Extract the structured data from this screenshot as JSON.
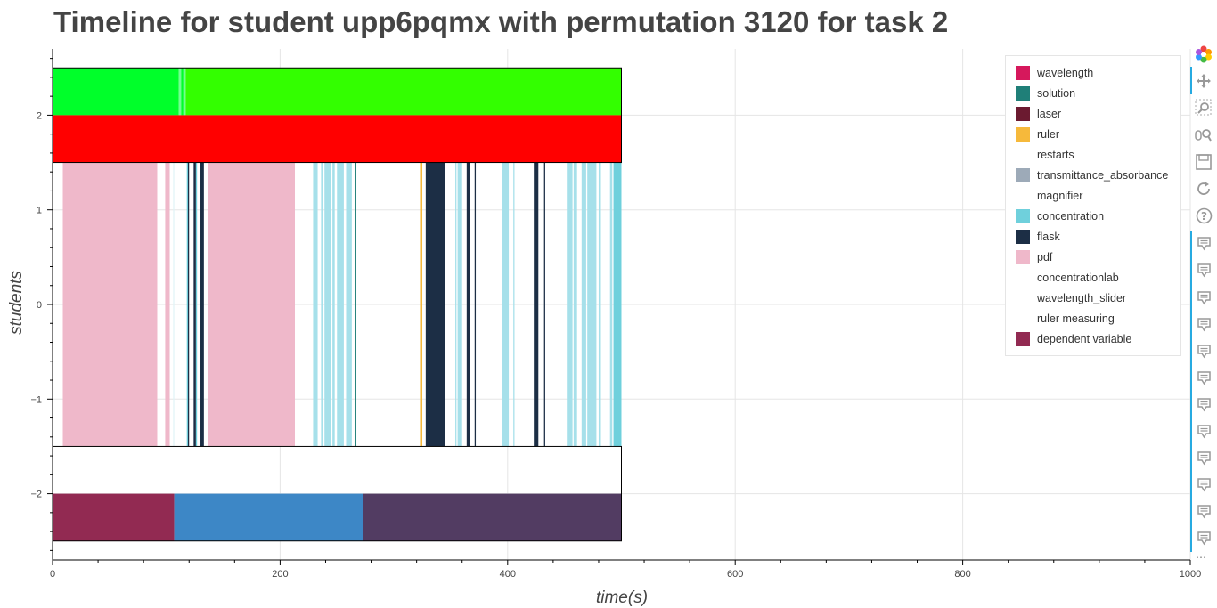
{
  "chart_data": {
    "type": "timeline",
    "title": "Timeline for student upp6pqmx with permutation 3120 for task 2",
    "xlabel": "time(s)",
    "ylabel": "students",
    "xlim": [
      0,
      1000
    ],
    "ylim": [
      -2.7,
      2.7
    ],
    "xticks": [
      0,
      200,
      400,
      600,
      800,
      1000
    ],
    "yticks": [
      -2,
      -1,
      0,
      1,
      2
    ],
    "ytick_labels": [
      "−2",
      "−1",
      "0",
      "1",
      "2"
    ],
    "grid": true,
    "legend_position": "top-right",
    "legend": [
      {
        "label": "wavelength",
        "color": "#d6185c"
      },
      {
        "label": "solution",
        "color": "#1f7f78"
      },
      {
        "label": "laser",
        "color": "#6b1a30"
      },
      {
        "label": "ruler",
        "color": "#f6b93b"
      },
      {
        "label": "restarts",
        "color": "#ffffff"
      },
      {
        "label": "transmittance_absorbance",
        "color": "#9daab8"
      },
      {
        "label": "magnifier",
        "color": "#ffffff"
      },
      {
        "label": "concentration",
        "color": "#6fd0dc"
      },
      {
        "label": "flask",
        "color": "#1c2e45"
      },
      {
        "label": "pdf",
        "color": "#efb8ca"
      },
      {
        "label": "concentrationlab",
        "color": "#ffffff"
      },
      {
        "label": "wavelength_slider",
        "color": "#ffffff"
      },
      {
        "label": "ruler measuring",
        "color": "#ffffff"
      },
      {
        "label": "dependent variable",
        "color": "#922a52"
      }
    ],
    "rows": [
      {
        "y0": 2.0,
        "y1": 2.5,
        "segments": [
          {
            "x0": 0,
            "x1": 111,
            "color": "#00ff2a"
          },
          {
            "x0": 111,
            "x1": 113,
            "color": "#70ff90"
          },
          {
            "x0": 113,
            "x1": 115,
            "color": "#00ff2a"
          },
          {
            "x0": 115,
            "x1": 117,
            "color": "#70ff90"
          },
          {
            "x0": 117,
            "x1": 500,
            "color": "#33ff00"
          }
        ]
      },
      {
        "y0": 1.5,
        "y1": 2.0,
        "segments": [
          {
            "x0": 0,
            "x1": 500,
            "color": "#ff0000"
          }
        ]
      },
      {
        "y0": -1.5,
        "y1": 1.5,
        "segments": [
          {
            "x0": 9,
            "x1": 92,
            "color": "#efb8ca"
          },
          {
            "x0": 99,
            "x1": 103,
            "color": "#efb8ca"
          },
          {
            "x0": 106,
            "x1": 107,
            "color": "#e0f3f6"
          },
          {
            "x0": 118,
            "x1": 119,
            "color": "#6fd0dc"
          },
          {
            "x0": 119,
            "x1": 120,
            "color": "#1c2e45"
          },
          {
            "x0": 124,
            "x1": 126,
            "color": "#1c2e45"
          },
          {
            "x0": 126,
            "x1": 127,
            "color": "#6fd0dc"
          },
          {
            "x0": 130,
            "x1": 133,
            "color": "#1c2e45"
          },
          {
            "x0": 137,
            "x1": 213,
            "color": "#efb8ca"
          },
          {
            "x0": 229,
            "x1": 233,
            "color": "#a6e0ea"
          },
          {
            "x0": 236,
            "x1": 238,
            "color": "#a6e0ea"
          },
          {
            "x0": 239,
            "x1": 245,
            "color": "#a6e0ea"
          },
          {
            "x0": 246,
            "x1": 248,
            "color": "#a6e0ea"
          },
          {
            "x0": 250,
            "x1": 256,
            "color": "#a6e0ea"
          },
          {
            "x0": 258,
            "x1": 263,
            "color": "#a6e0ea"
          },
          {
            "x0": 266,
            "x1": 267,
            "color": "#1f7f78"
          },
          {
            "x0": 323,
            "x1": 325,
            "color": "#f6b93b"
          },
          {
            "x0": 328,
            "x1": 345,
            "color": "#1c2e45"
          },
          {
            "x0": 354,
            "x1": 355,
            "color": "#a6e0ea"
          },
          {
            "x0": 356,
            "x1": 360,
            "color": "#a6e0ea"
          },
          {
            "x0": 364,
            "x1": 367,
            "color": "#1c2e45"
          },
          {
            "x0": 371,
            "x1": 372,
            "color": "#1c2e45"
          },
          {
            "x0": 395,
            "x1": 401,
            "color": "#a6e0ea"
          },
          {
            "x0": 405,
            "x1": 406,
            "color": "#a6e0ea"
          },
          {
            "x0": 423,
            "x1": 427,
            "color": "#1c2e45"
          },
          {
            "x0": 432,
            "x1": 433,
            "color": "#1c2e45"
          },
          {
            "x0": 452,
            "x1": 457,
            "color": "#a6e0ea"
          },
          {
            "x0": 458,
            "x1": 461,
            "color": "#a6e0ea"
          },
          {
            "x0": 465,
            "x1": 469,
            "color": "#a6e0ea"
          },
          {
            "x0": 470,
            "x1": 478,
            "color": "#a6e0ea"
          },
          {
            "x0": 480,
            "x1": 482,
            "color": "#a6e0ea"
          },
          {
            "x0": 490,
            "x1": 492,
            "color": "#a6e0ea"
          },
          {
            "x0": 493,
            "x1": 500,
            "color": "#6fd0dc"
          }
        ]
      },
      {
        "y0": -2.5,
        "y1": -2.0,
        "segments": [
          {
            "x0": 0,
            "x1": 107,
            "color": "#922a52"
          },
          {
            "x0": 107,
            "x1": 273,
            "color": "#3d87c6"
          },
          {
            "x0": 273,
            "x1": 500,
            "color": "#523c62"
          }
        ]
      }
    ],
    "outline_boxes": [
      {
        "x0": 0,
        "x1": 500,
        "y0": 1.5,
        "y1": 2.5
      },
      {
        "x0": 0,
        "x1": 500,
        "y0": -2.5,
        "y1": -1.5
      }
    ]
  },
  "toolbar": {
    "tools": [
      {
        "name": "bokeh-logo-icon",
        "active": false
      },
      {
        "name": "pan-icon",
        "active": true
      },
      {
        "name": "box-zoom-icon",
        "active": false
      },
      {
        "name": "wheel-zoom-icon",
        "active": false
      },
      {
        "name": "save-icon",
        "active": false
      },
      {
        "name": "reset-icon",
        "active": false
      },
      {
        "name": "help-icon",
        "active": false
      },
      {
        "name": "hover-icon",
        "active": true
      },
      {
        "name": "hover-icon",
        "active": true
      },
      {
        "name": "hover-icon",
        "active": true
      },
      {
        "name": "hover-icon",
        "active": true
      },
      {
        "name": "hover-icon",
        "active": true
      },
      {
        "name": "hover-icon",
        "active": true
      },
      {
        "name": "hover-icon",
        "active": true
      },
      {
        "name": "hover-icon",
        "active": true
      },
      {
        "name": "hover-icon",
        "active": true
      },
      {
        "name": "hover-icon",
        "active": true
      },
      {
        "name": "hover-icon",
        "active": true
      },
      {
        "name": "hover-icon",
        "active": true
      }
    ],
    "more_label": "…"
  }
}
